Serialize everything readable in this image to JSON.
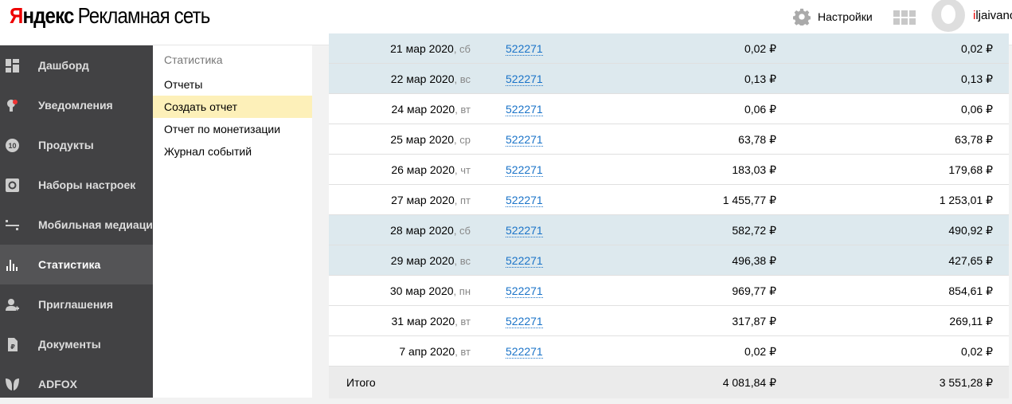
{
  "header": {
    "logo_ya_first": "Я",
    "logo_ya_rest": "ндекс",
    "logo_product": "Рекламная сеть",
    "settings_label": "Настройки",
    "user_first": "i",
    "user_rest": "ljaivanc"
  },
  "sidebar": {
    "items": [
      {
        "label": "Дашборд",
        "icon": "dashboard-icon"
      },
      {
        "label": "Уведомления",
        "icon": "bulb-icon"
      },
      {
        "label": "Продукты",
        "icon": "products-badge-icon",
        "badge": "10"
      },
      {
        "label": "Наборы настроек",
        "icon": "gear-icon"
      },
      {
        "label": "Мобильная медиация",
        "icon": "mediation-icon"
      },
      {
        "label": "Статистика",
        "icon": "bar-chart-icon",
        "active": true
      },
      {
        "label": "Приглашения",
        "icon": "add-user-icon"
      },
      {
        "label": "Документы",
        "icon": "document-ruble-icon"
      },
      {
        "label": "ADFOX",
        "icon": "adfox-leaf-icon"
      }
    ]
  },
  "submenu": {
    "title": "Статистика",
    "items": [
      {
        "label": "Отчеты"
      },
      {
        "label": "Создать отчет",
        "selected": true
      },
      {
        "label": "Отчет по монетизации"
      },
      {
        "label": "Журнал событий"
      }
    ]
  },
  "table": {
    "rows": [
      {
        "date": "21 мар 2020",
        "dow": "сб",
        "id": "522271",
        "v1": "0,02 ₽",
        "v2": "0,02 ₽",
        "weekend": true
      },
      {
        "date": "22 мар 2020",
        "dow": "вс",
        "id": "522271",
        "v1": "0,13 ₽",
        "v2": "0,13 ₽",
        "weekend": true
      },
      {
        "date": "24 мар 2020",
        "dow": "вт",
        "id": "522271",
        "v1": "0,06 ₽",
        "v2": "0,06 ₽"
      },
      {
        "date": "25 мар 2020",
        "dow": "ср",
        "id": "522271",
        "v1": "63,78 ₽",
        "v2": "63,78 ₽"
      },
      {
        "date": "26 мар 2020",
        "dow": "чт",
        "id": "522271",
        "v1": "183,03 ₽",
        "v2": "179,68 ₽"
      },
      {
        "date": "27 мар 2020",
        "dow": "пт",
        "id": "522271",
        "v1": "1 455,77 ₽",
        "v2": "1 253,01 ₽"
      },
      {
        "date": "28 мар 2020",
        "dow": "сб",
        "id": "522271",
        "v1": "582,72 ₽",
        "v2": "490,92 ₽",
        "weekend": true
      },
      {
        "date": "29 мар 2020",
        "dow": "вс",
        "id": "522271",
        "v1": "496,38 ₽",
        "v2": "427,65 ₽",
        "weekend": true
      },
      {
        "date": "30 мар 2020",
        "dow": "пн",
        "id": "522271",
        "v1": "969,77 ₽",
        "v2": "854,61 ₽"
      },
      {
        "date": "31 мар 2020",
        "dow": "вт",
        "id": "522271",
        "v1": "317,87 ₽",
        "v2": "269,11 ₽"
      },
      {
        "date": "7 апр 2020",
        "dow": "вт",
        "id": "522271",
        "v1": "0,02 ₽",
        "v2": "0,02 ₽"
      }
    ],
    "total": {
      "label": "Итого",
      "v1": "4 081,84 ₽",
      "v2": "3 551,28 ₽"
    }
  }
}
